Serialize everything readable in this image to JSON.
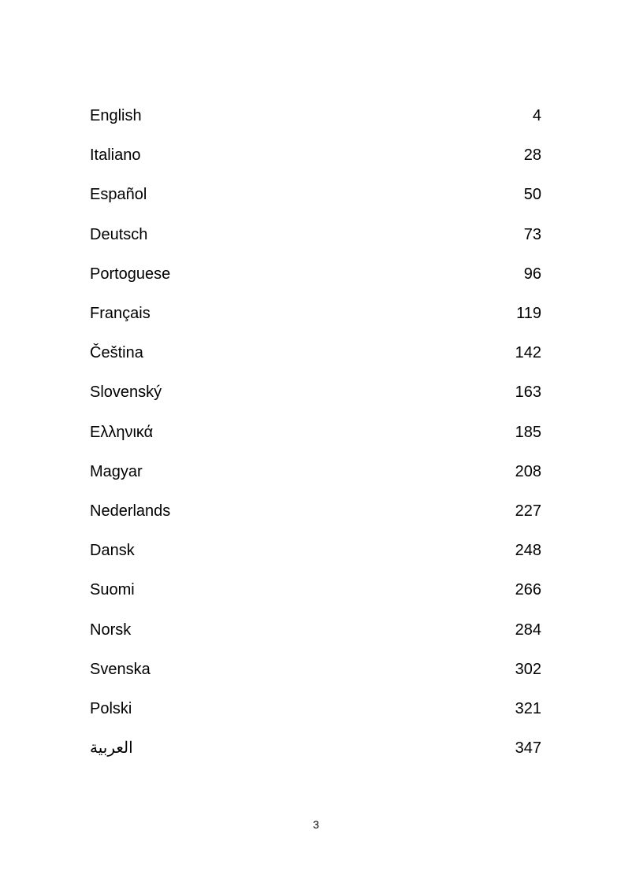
{
  "page": {
    "background_color": "#ffffff",
    "text_color": "#000000"
  },
  "toc": {
    "entries": [
      {
        "label": "English",
        "page": "4"
      },
      {
        "label": "Italiano",
        "page": "28"
      },
      {
        "label": "Español",
        "page": "50"
      },
      {
        "label": "Deutsch",
        "page": "73"
      },
      {
        "label": "Portoguese",
        "page": "96"
      },
      {
        "label": "Français",
        "page": "119"
      },
      {
        "label": "Čeština",
        "page": "142"
      },
      {
        "label": "Slovenský",
        "page": "163"
      },
      {
        "label": "Ελληνικά",
        "page": "185"
      },
      {
        "label": "Magyar",
        "page": "208"
      },
      {
        "label": "Nederlands",
        "page": "227"
      },
      {
        "label": "Dansk",
        "page": "248"
      },
      {
        "label": "Suomi",
        "page": "266"
      },
      {
        "label": "Norsk",
        "page": "284"
      },
      {
        "label": "Svenska",
        "page": "302"
      },
      {
        "label": "Polski",
        "page": "321"
      },
      {
        "label": "العربية",
        "page": "347"
      }
    ]
  },
  "footer": {
    "page_number": "3"
  }
}
